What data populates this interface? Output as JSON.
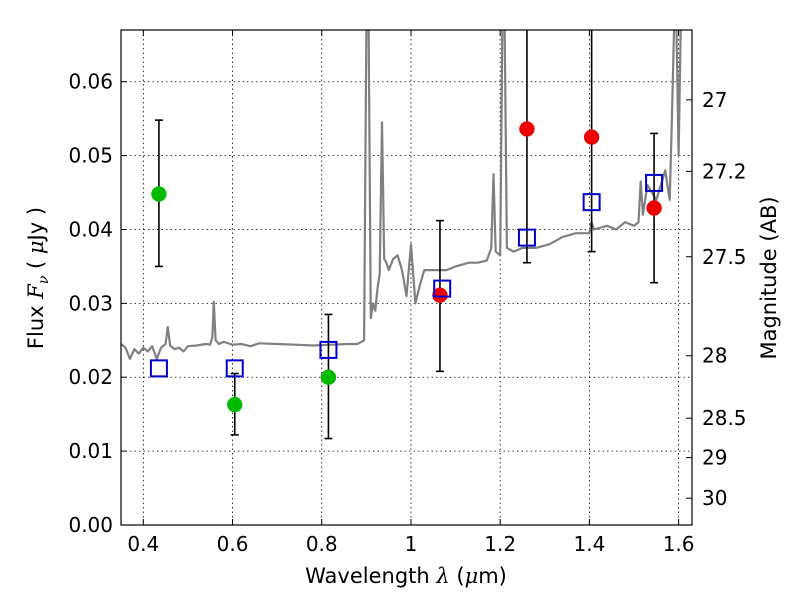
{
  "chart_data": {
    "type": "scatter",
    "title": "",
    "xlabel": {
      "prefix": "Wavelength  ",
      "symbol": "λ",
      "suffix_open": " (",
      "unit_symbol": "μ",
      "unit_rest": "m)"
    },
    "ylabel": {
      "prefix": "Flux  ",
      "symbol": "F",
      "sub": "ν",
      "mid": "  ( ",
      "unit_symbol": "μ",
      "unit_rest": "Jy )"
    },
    "y2label": "Magnitude (AB)",
    "xlim": [
      0.35,
      1.63
    ],
    "ylim": [
      0.0,
      0.067
    ],
    "grid": true,
    "x_ticks": [
      {
        "v": 0.4,
        "label": "0.4"
      },
      {
        "v": 0.6,
        "label": "0.6"
      },
      {
        "v": 0.8,
        "label": "0.8"
      },
      {
        "v": 1.0,
        "label": "1"
      },
      {
        "v": 1.2,
        "label": "1.2"
      },
      {
        "v": 1.4,
        "label": "1.4"
      },
      {
        "v": 1.6,
        "label": "1.6"
      }
    ],
    "y_ticks": [
      {
        "v": 0.0,
        "label": "0.00"
      },
      {
        "v": 0.01,
        "label": "0.01"
      },
      {
        "v": 0.02,
        "label": "0.02"
      },
      {
        "v": 0.03,
        "label": "0.03"
      },
      {
        "v": 0.04,
        "label": "0.04"
      },
      {
        "v": 0.05,
        "label": "0.05"
      },
      {
        "v": 0.06,
        "label": "0.06"
      }
    ],
    "y2_ticks": [
      {
        "mag": 27,
        "label": "27"
      },
      {
        "mag": 27.2,
        "label": "27.2"
      },
      {
        "mag": 27.5,
        "label": "27.5"
      },
      {
        "mag": 28,
        "label": "28"
      },
      {
        "mag": 28.5,
        "label": "28.5"
      },
      {
        "mag": 29,
        "label": "29"
      },
      {
        "mag": 30,
        "label": "30"
      }
    ],
    "colors": {
      "spectrum": "#808080",
      "green": "#00bb00",
      "red": "#ee0000",
      "model": "#0000cc",
      "errorbar": "#000000"
    },
    "spectrum": [
      [
        0.35,
        0.0245
      ],
      [
        0.36,
        0.024
      ],
      [
        0.37,
        0.0225
      ],
      [
        0.38,
        0.0238
      ],
      [
        0.39,
        0.0232
      ],
      [
        0.4,
        0.024
      ],
      [
        0.41,
        0.0235
      ],
      [
        0.42,
        0.0242
      ],
      [
        0.43,
        0.0225
      ],
      [
        0.44,
        0.024
      ],
      [
        0.45,
        0.0245
      ],
      [
        0.455,
        0.0268
      ],
      [
        0.46,
        0.0243
      ],
      [
        0.47,
        0.0238
      ],
      [
        0.48,
        0.024
      ],
      [
        0.49,
        0.0235
      ],
      [
        0.5,
        0.0242
      ],
      [
        0.52,
        0.0243
      ],
      [
        0.54,
        0.0245
      ],
      [
        0.55,
        0.0244
      ],
      [
        0.555,
        0.0255
      ],
      [
        0.558,
        0.0302
      ],
      [
        0.562,
        0.025
      ],
      [
        0.57,
        0.0245
      ],
      [
        0.58,
        0.0248
      ],
      [
        0.6,
        0.0244
      ],
      [
        0.62,
        0.0245
      ],
      [
        0.64,
        0.0242
      ],
      [
        0.66,
        0.0246
      ],
      [
        0.7,
        0.0245
      ],
      [
        0.74,
        0.0244
      ],
      [
        0.78,
        0.0243
      ],
      [
        0.82,
        0.0244
      ],
      [
        0.86,
        0.0245
      ],
      [
        0.88,
        0.0245
      ],
      [
        0.895,
        0.025
      ],
      [
        0.9,
        0.068
      ],
      [
        0.905,
        0.068
      ],
      [
        0.91,
        0.028
      ],
      [
        0.915,
        0.03
      ],
      [
        0.92,
        0.029
      ],
      [
        0.925,
        0.032
      ],
      [
        0.93,
        0.034
      ],
      [
        0.935,
        0.0545
      ],
      [
        0.94,
        0.036
      ],
      [
        0.945,
        0.0355
      ],
      [
        0.95,
        0.0345
      ],
      [
        0.96,
        0.036
      ],
      [
        0.97,
        0.0365
      ],
      [
        0.98,
        0.0345
      ],
      [
        0.99,
        0.031
      ],
      [
        1.0,
        0.038
      ],
      [
        1.01,
        0.03
      ],
      [
        1.02,
        0.0325
      ],
      [
        1.03,
        0.0345
      ],
      [
        1.05,
        0.0345
      ],
      [
        1.08,
        0.0345
      ],
      [
        1.1,
        0.035
      ],
      [
        1.13,
        0.0355
      ],
      [
        1.15,
        0.0355
      ],
      [
        1.17,
        0.0358
      ],
      [
        1.18,
        0.0375
      ],
      [
        1.185,
        0.0475
      ],
      [
        1.19,
        0.037
      ],
      [
        1.2,
        0.0365
      ],
      [
        1.205,
        0.068
      ],
      [
        1.21,
        0.068
      ],
      [
        1.215,
        0.0375
      ],
      [
        1.23,
        0.037
      ],
      [
        1.25,
        0.0375
      ],
      [
        1.28,
        0.0375
      ],
      [
        1.31,
        0.038
      ],
      [
        1.34,
        0.039
      ],
      [
        1.37,
        0.0395
      ],
      [
        1.4,
        0.0395
      ],
      [
        1.405,
        0.041
      ],
      [
        1.41,
        0.04
      ],
      [
        1.44,
        0.0405
      ],
      [
        1.46,
        0.04
      ],
      [
        1.48,
        0.041
      ],
      [
        1.5,
        0.0405
      ],
      [
        1.51,
        0.041
      ],
      [
        1.515,
        0.0465
      ],
      [
        1.52,
        0.042
      ],
      [
        1.53,
        0.046
      ],
      [
        1.54,
        0.045
      ],
      [
        1.55,
        0.044
      ],
      [
        1.56,
        0.046
      ],
      [
        1.57,
        0.048
      ],
      [
        1.58,
        0.044
      ],
      [
        1.585,
        0.055
      ],
      [
        1.59,
        0.068
      ],
      [
        1.595,
        0.068
      ],
      [
        1.6,
        0.05
      ],
      [
        1.605,
        0.068
      ],
      [
        1.61,
        0.068
      ],
      [
        1.62,
        0.068
      ],
      [
        1.63,
        0.068
      ]
    ],
    "series": [
      {
        "color": "green",
        "marker": "circle",
        "points": [
          {
            "x": 0.435,
            "y": 0.0448,
            "yerr_low": 0.035,
            "yerr_high": 0.0548
          },
          {
            "x": 0.605,
            "y": 0.0163,
            "yerr_low": 0.0122,
            "yerr_high": 0.0205
          },
          {
            "x": 0.815,
            "y": 0.02,
            "yerr_low": 0.0117,
            "yerr_high": 0.0285
          }
        ]
      },
      {
        "color": "red",
        "marker": "circle",
        "points": [
          {
            "x": 1.065,
            "y": 0.0311,
            "yerr_low": 0.0208,
            "yerr_high": 0.0412
          },
          {
            "x": 1.26,
            "y": 0.0536,
            "yerr_low": 0.0355,
            "yerr_high": 0.07
          },
          {
            "x": 1.405,
            "y": 0.0525,
            "yerr_low": 0.037,
            "yerr_high": 0.07
          },
          {
            "x": 1.545,
            "y": 0.0429,
            "yerr_low": 0.0328,
            "yerr_high": 0.053
          }
        ]
      },
      {
        "color": "model",
        "marker": "square",
        "points": [
          {
            "x": 0.435,
            "y": 0.0212
          },
          {
            "x": 0.605,
            "y": 0.0212
          },
          {
            "x": 0.815,
            "y": 0.0237
          },
          {
            "x": 1.07,
            "y": 0.032
          },
          {
            "x": 1.26,
            "y": 0.0389
          },
          {
            "x": 1.405,
            "y": 0.0437
          },
          {
            "x": 1.545,
            "y": 0.0463
          }
        ]
      }
    ]
  }
}
